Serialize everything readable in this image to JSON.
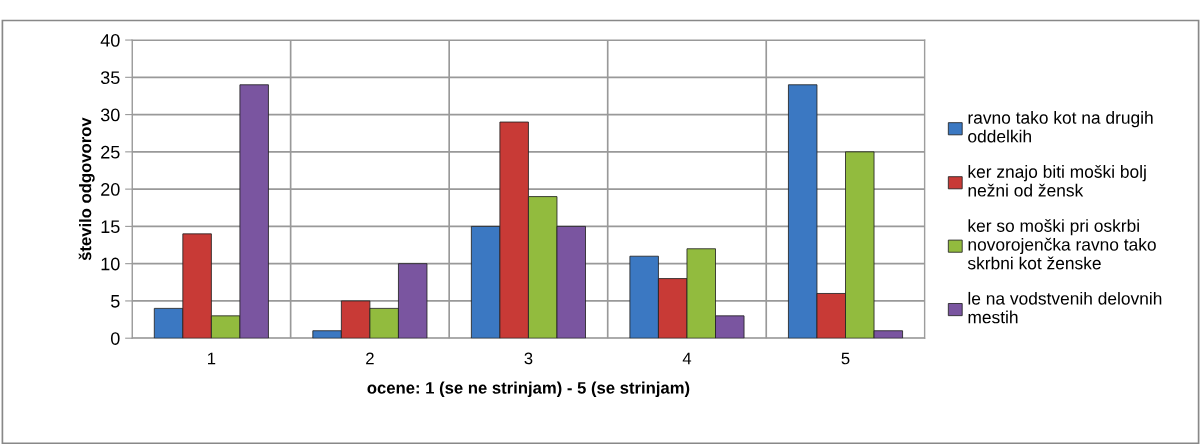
{
  "chart_data": {
    "type": "bar",
    "xlabel": "ocene: 1 (se ne strinjam) - 5 (se strinjam)",
    "ylabel": "število odgovorov",
    "categories": [
      "1",
      "2",
      "3",
      "4",
      "5"
    ],
    "series": [
      {
        "name": "ravno tako kot na drugih oddelkih",
        "color": "#3b78c2",
        "values": [
          4,
          1,
          15,
          11,
          34
        ]
      },
      {
        "name": "ker znajo biti moški bolj nežni od žensk",
        "color": "#c83a36",
        "values": [
          14,
          5,
          29,
          8,
          6
        ]
      },
      {
        "name": "ker so moški pri oskrbi novorojenčka ravno tako skrbni kot ženske",
        "color": "#92bb3e",
        "values": [
          3,
          4,
          19,
          12,
          25
        ]
      },
      {
        "name": "le na vodstvenih delovnih mestih",
        "color": "#7a55a0",
        "values": [
          34,
          10,
          15,
          3,
          1
        ]
      }
    ],
    "ylim": [
      0,
      40
    ],
    "yticks": [
      0,
      5,
      10,
      15,
      20,
      25,
      30,
      35,
      40
    ],
    "grid": true,
    "legend": "right"
  }
}
